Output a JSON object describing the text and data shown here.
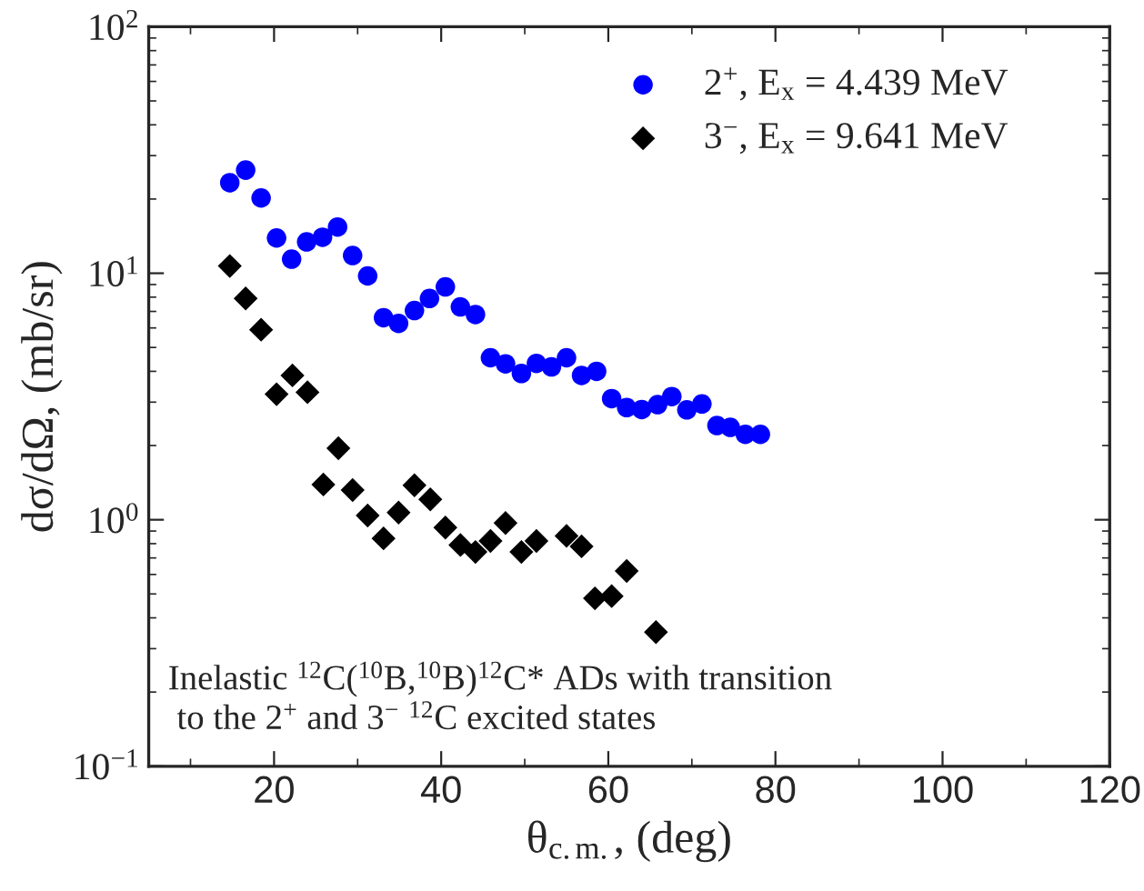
{
  "chart_data": {
    "type": "scatter",
    "xlabel": "θ$_{c.m.}$, (deg)",
    "ylabel": "dσ/dΩ, (mb/sr)",
    "log": "y",
    "xlim": [
      5,
      120
    ],
    "xticks": [
      20,
      40,
      60,
      80,
      100,
      120
    ],
    "ylim": [
      0.1,
      100
    ],
    "yticks": [
      {
        "value": 0.1,
        "label": "10$^{−1}$"
      },
      {
        "value": 1,
        "label": "10$^{0}$"
      },
      {
        "value": 10,
        "label": "10$^{1}$"
      },
      {
        "value": 100,
        "label": "10$^{2}$"
      }
    ],
    "grid": false,
    "legend": "top right",
    "annotations": [
      "Inelastic $^{12}$C($^{10}$B,$^{10}$B)$^{12}$C* ADs with transition\n to the 2$^{+}$ and 3$^{−}$ $^{12}$C excited states"
    ],
    "series": [
      {
        "name": "2$^{+}$, E$_{x}$ = 4.439 MeV",
        "color": "#0000ff",
        "marker": "circle",
        "x": [
          14.7,
          16.6,
          18.45,
          20.3,
          22.1,
          23.9,
          25.8,
          27.6,
          29.4,
          31.2,
          33.1,
          34.9,
          36.8,
          38.6,
          40.5,
          42.3,
          44.1,
          45.9,
          47.7,
          49.6,
          51.4,
          53.2,
          55.0,
          56.8,
          58.6,
          60.4,
          62.2,
          64.0,
          65.9,
          67.6,
          69.4,
          71.2,
          73.0,
          74.6,
          76.4,
          78.2
        ],
        "values": [
          23.3,
          26.2,
          20.2,
          13.9,
          11.4,
          13.4,
          14.0,
          15.4,
          11.8,
          9.75,
          6.6,
          6.26,
          7.06,
          7.9,
          8.8,
          7.3,
          6.8,
          4.54,
          4.29,
          3.92,
          4.31,
          4.17,
          4.54,
          3.85,
          4.0,
          3.1,
          2.85,
          2.8,
          2.93,
          3.16,
          2.79,
          2.95,
          2.41,
          2.37,
          2.22,
          2.22
        ]
      },
      {
        "name": "3$^{−}$, E$_{x}$ = 9.641 MeV",
        "color": "#000000",
        "marker": "diamond",
        "x": [
          14.7,
          16.6,
          18.45,
          20.3,
          22.2,
          24.0,
          25.9,
          27.7,
          29.4,
          31.2,
          33.1,
          34.9,
          36.8,
          38.7,
          40.5,
          42.3,
          44.1,
          45.9,
          47.7,
          49.6,
          51.4,
          55.0,
          56.8,
          58.4,
          60.4,
          62.2,
          65.7
        ],
        "values": [
          10.7,
          7.9,
          5.9,
          3.23,
          3.85,
          3.29,
          1.39,
          1.95,
          1.32,
          1.04,
          0.84,
          1.07,
          1.38,
          1.21,
          0.93,
          0.79,
          0.74,
          0.82,
          0.97,
          0.74,
          0.82,
          0.86,
          0.78,
          0.48,
          0.49,
          0.62,
          0.35
        ]
      }
    ]
  }
}
